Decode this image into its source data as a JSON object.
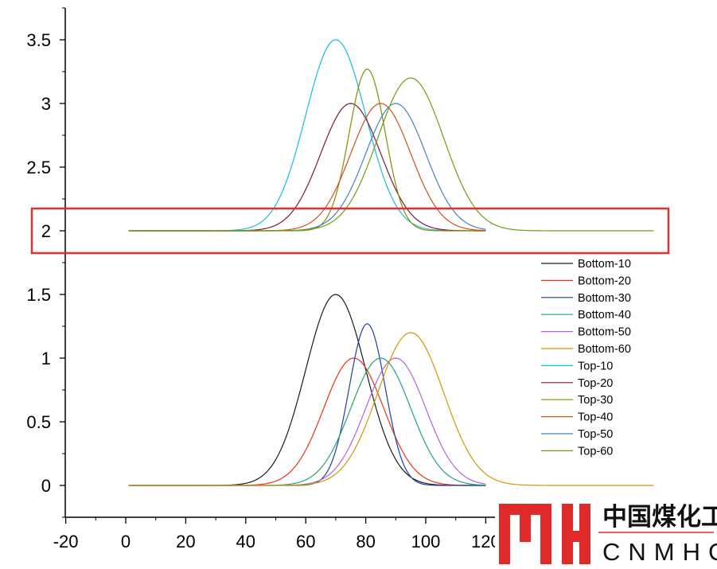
{
  "chart_data": {
    "type": "line",
    "title": "",
    "xlabel": "",
    "ylabel": "",
    "xlim": [
      -20,
      132
    ],
    "ylim": [
      -0.25,
      3.75
    ],
    "x_ticks": [
      -20,
      0,
      20,
      40,
      60,
      80,
      100,
      120
    ],
    "x_tick_labels": [
      "-20",
      "0",
      "20",
      "40",
      "60",
      "80",
      "100",
      "120"
    ],
    "y_ticks": [
      0,
      0.5,
      1,
      1.5,
      2,
      2.5,
      3,
      3.5
    ],
    "y_tick_labels": [
      "0",
      "0.5",
      "1",
      "1.5",
      "2",
      "2.5",
      "3",
      "3.5"
    ],
    "grid": false,
    "legend_position": "right",
    "series": [
      {
        "name": "Bottom-10",
        "color": "#1a1a1a",
        "peak_x": 70,
        "baseline": 0,
        "amplitude": 1.5,
        "sigma": 10,
        "x_range": [
          1,
          120
        ]
      },
      {
        "name": "Bottom-20",
        "color": "#e8341c",
        "peak_x": 76,
        "baseline": 0,
        "amplitude": 1.0,
        "sigma": 10,
        "x_range": [
          1,
          120
        ]
      },
      {
        "name": "Bottom-30",
        "color": "#1f3fa8",
        "peak_x": 80.5,
        "baseline": 0,
        "amplitude": 1.27,
        "sigma": 6,
        "x_range": [
          1,
          120
        ]
      },
      {
        "name": "Bottom-40",
        "color": "#21a573",
        "peak_x": 85,
        "baseline": 0,
        "amplitude": 1.0,
        "sigma": 10,
        "x_range": [
          1,
          120
        ]
      },
      {
        "name": "Bottom-50",
        "color": "#b066d6",
        "peak_x": 90,
        "baseline": 0,
        "amplitude": 1.0,
        "sigma": 10,
        "x_range": [
          1,
          120
        ]
      },
      {
        "name": "Bottom-60",
        "color": "#cc9a00",
        "peak_x": 95,
        "baseline": 0,
        "amplitude": 1.2,
        "sigma": 11,
        "x_range": [
          1,
          179
        ]
      },
      {
        "name": "Top-10",
        "color": "#17bedb",
        "peak_x": 70,
        "baseline": 2,
        "amplitude": 1.5,
        "sigma": 10,
        "x_range": [
          1,
          120
        ]
      },
      {
        "name": "Top-20",
        "color": "#7a1a3a",
        "peak_x": 75,
        "baseline": 2,
        "amplitude": 1.0,
        "sigma": 10,
        "x_range": [
          1,
          120
        ]
      },
      {
        "name": "Top-30",
        "color": "#8a8a00",
        "peak_x": 80.5,
        "baseline": 2,
        "amplitude": 1.27,
        "sigma": 6,
        "x_range": [
          1,
          120
        ]
      },
      {
        "name": "Top-40",
        "color": "#d4501f",
        "peak_x": 85,
        "baseline": 2,
        "amplitude": 1.0,
        "sigma": 10,
        "x_range": [
          1,
          120
        ]
      },
      {
        "name": "Top-50",
        "color": "#4a7fc4",
        "peak_x": 90,
        "baseline": 2,
        "amplitude": 1.0,
        "sigma": 10,
        "x_range": [
          1,
          120
        ]
      },
      {
        "name": "Top-60",
        "color": "#6f9e10",
        "peak_x": 95,
        "baseline": 2,
        "amplitude": 1.2,
        "sigma": 11,
        "x_range": [
          1,
          179
        ]
      }
    ],
    "highlight_box_color": "#e03030"
  },
  "logo": {
    "main_text": "中国煤化工",
    "sub_text": "CNMHG",
    "mark_color": "#e02a2a"
  }
}
